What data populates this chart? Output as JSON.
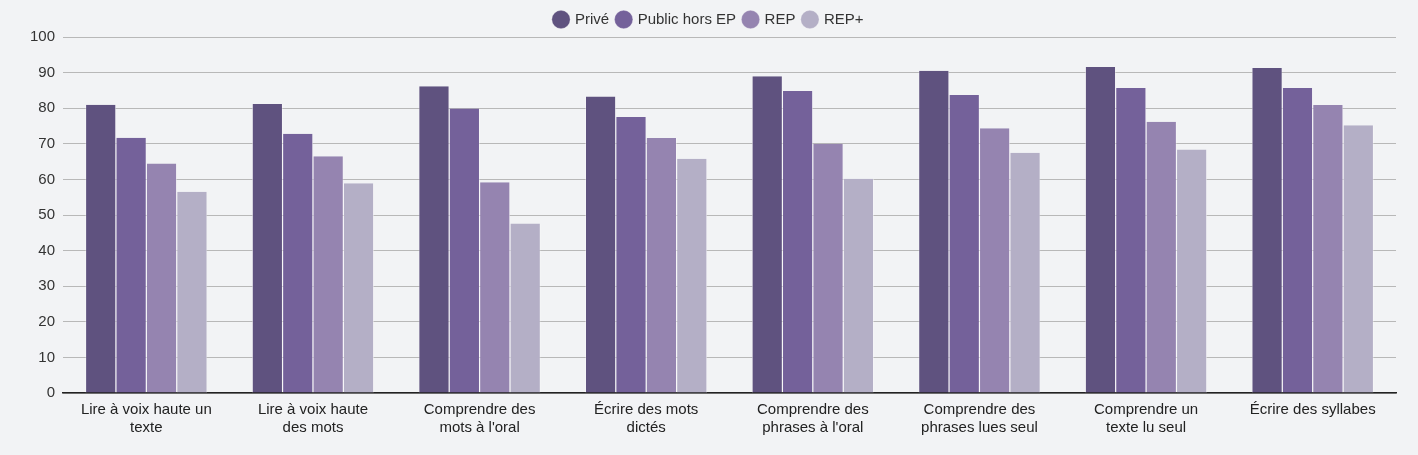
{
  "chart_data": {
    "type": "bar",
    "categories": [
      "Lire à voix haute un texte",
      "Lire à voix haute des mots",
      "Comprendre des mots à l'oral",
      "Écrire des mots dictés",
      "Comprendre des phrases à l'oral",
      "Comprendre des phrases lues seul",
      "Comprendre un texte lu seul",
      "Écrire des syllabes"
    ],
    "series": [
      {
        "name": "Privé",
        "color": "#5f527f",
        "values": [
          81,
          81.2,
          86.2,
          83.3,
          89,
          90.5,
          91.6,
          91.3
        ]
      },
      {
        "name": "Public hors EP",
        "color": "#74619a",
        "values": [
          71.7,
          72.8,
          79.9,
          77.5,
          84.8,
          83.7,
          85.7,
          85.7
        ]
      },
      {
        "name": "REP",
        "color": "#9584b0",
        "values": [
          64.5,
          66.5,
          59.2,
          71.6,
          70,
          74.4,
          76.2,
          80.9
        ]
      },
      {
        "name": "REP+",
        "color": "#b4afc6",
        "values": [
          56.5,
          58.9,
          47.6,
          65.8,
          60.2,
          67.5,
          68.4,
          75.2
        ]
      }
    ],
    "ylim": [
      0,
      100
    ],
    "yticks": [
      0,
      10,
      20,
      30,
      40,
      50,
      60,
      70,
      80,
      90,
      100
    ],
    "grid": "y",
    "legend": "top"
  }
}
